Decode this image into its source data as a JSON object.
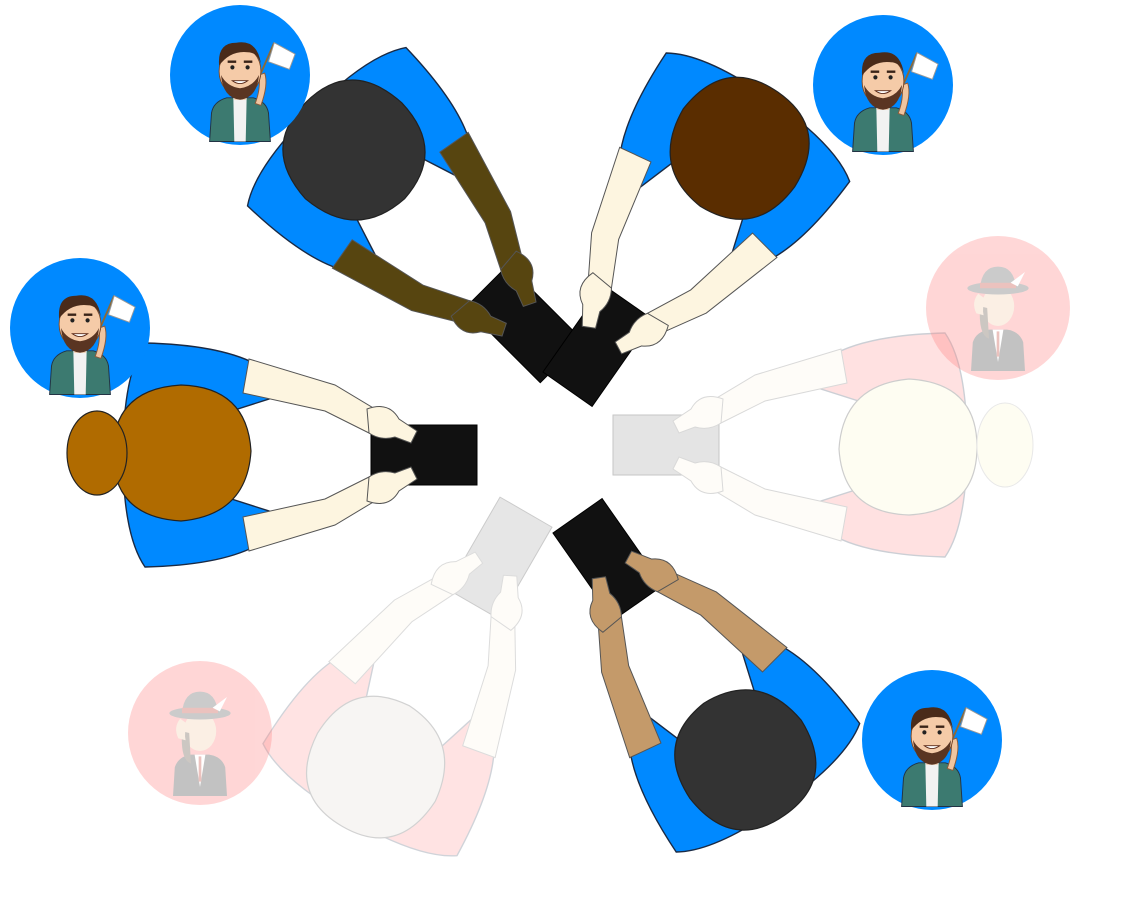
{
  "game": {
    "players": [
      {
        "id": "p1",
        "seat": "top-left",
        "team": "blue",
        "active": true,
        "avatar": "man-with-white-flag",
        "hair": "#333333",
        "skin": "#574510"
      },
      {
        "id": "p2",
        "seat": "top-right",
        "team": "blue",
        "active": true,
        "avatar": "man-with-white-flag",
        "hair": "#5a2d00",
        "skin": "#fdf5e0"
      },
      {
        "id": "p3",
        "seat": "left",
        "team": "blue",
        "active": true,
        "avatar": "man-with-white-flag",
        "hair": "#b06b00",
        "skin": "#fdf5e0"
      },
      {
        "id": "p4",
        "seat": "right",
        "team": "red",
        "active": false,
        "avatar": "hat-character",
        "hair": "#fdf8c8",
        "skin": "#fdf5e0"
      },
      {
        "id": "p5",
        "seat": "bottom-left",
        "team": "red",
        "active": false,
        "avatar": "hat-character",
        "hair": "#d9cfc7",
        "skin": "#fdf5e0"
      },
      {
        "id": "p6",
        "seat": "bottom-right",
        "team": "blue",
        "active": true,
        "avatar": "man-with-white-flag",
        "hair": "#333333",
        "skin": "#c49a6a"
      }
    ],
    "colors": {
      "blue_team": "#0089ff",
      "red_team": "#ff7a7a",
      "phone": "#111111",
      "inactive_phone": "#bdbdbd"
    }
  }
}
